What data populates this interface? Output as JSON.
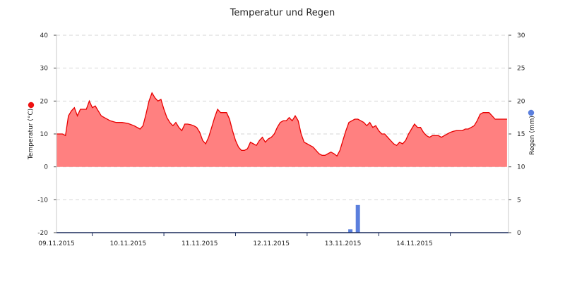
{
  "chart_data": {
    "type": "area",
    "title": "Temperatur und Regen",
    "x_labels": [
      "09.11.2015",
      "10.11.2015",
      "11.11.2015",
      "12.11.2015",
      "13.11.2015",
      "14.11.2015"
    ],
    "x_range": [
      "08.11.2015 12:00",
      "15.11.2015 05:00"
    ],
    "y_left": {
      "label": "Temperatur (°C)",
      "min": -20,
      "max": 40,
      "ticks": [
        40,
        30,
        20,
        10,
        0,
        -10,
        -20
      ]
    },
    "y_right": {
      "label": "Regen (mm)",
      "min": 0,
      "max": 30,
      "ticks": [
        30,
        25,
        20,
        15,
        10,
        5,
        0
      ]
    },
    "grid": true,
    "series": [
      {
        "name": "Temperatur",
        "axis": "left",
        "type": "area",
        "color": "#e80000",
        "fill": "#ff8080",
        "x_unit": "hours since 08.11.2015 12:00",
        "points": [
          [
            0,
            10
          ],
          [
            2,
            10
          ],
          [
            3,
            9.5
          ],
          [
            4,
            15.5
          ],
          [
            5,
            17
          ],
          [
            6,
            18
          ],
          [
            7,
            15.5
          ],
          [
            8,
            17.5
          ],
          [
            9,
            17.5
          ],
          [
            10,
            17.5
          ],
          [
            11,
            20
          ],
          [
            12,
            18
          ],
          [
            13,
            18.5
          ],
          [
            14,
            17
          ],
          [
            15,
            15.5
          ],
          [
            16,
            15
          ],
          [
            18,
            14
          ],
          [
            20,
            13.5
          ],
          [
            22,
            13.5
          ],
          [
            24,
            13.2
          ],
          [
            26,
            12.5
          ],
          [
            28,
            11.5
          ],
          [
            29,
            12.5
          ],
          [
            30,
            16
          ],
          [
            31,
            20
          ],
          [
            32,
            22.5
          ],
          [
            33,
            21
          ],
          [
            34,
            20
          ],
          [
            35,
            20.5
          ],
          [
            36,
            17.5
          ],
          [
            37,
            15
          ],
          [
            38,
            13.5
          ],
          [
            39,
            12.5
          ],
          [
            40,
            13.5
          ],
          [
            41,
            12
          ],
          [
            42,
            11
          ],
          [
            43,
            13
          ],
          [
            44,
            13
          ],
          [
            45,
            12.8
          ],
          [
            46,
            12.5
          ],
          [
            47,
            12
          ],
          [
            48,
            10.5
          ],
          [
            49,
            8
          ],
          [
            50,
            7
          ],
          [
            51,
            9
          ],
          [
            52,
            12
          ],
          [
            53,
            15
          ],
          [
            54,
            17.5
          ],
          [
            55,
            16.5
          ],
          [
            56,
            16.5
          ],
          [
            57,
            16.5
          ],
          [
            58,
            14.5
          ],
          [
            59,
            11
          ],
          [
            60,
            8
          ],
          [
            61,
            6
          ],
          [
            62,
            5
          ],
          [
            63,
            5
          ],
          [
            64,
            5.5
          ],
          [
            65,
            7.5
          ],
          [
            66,
            7
          ],
          [
            67,
            6.5
          ],
          [
            68,
            8
          ],
          [
            69,
            9
          ],
          [
            70,
            7.5
          ],
          [
            71,
            8.5
          ],
          [
            72,
            9
          ],
          [
            73,
            10
          ],
          [
            74,
            12
          ],
          [
            75,
            13.5
          ],
          [
            76,
            14
          ],
          [
            77,
            14
          ],
          [
            78,
            15
          ],
          [
            79,
            14
          ],
          [
            80,
            15.5
          ],
          [
            81,
            14
          ],
          [
            82,
            10
          ],
          [
            83,
            7.5
          ],
          [
            84,
            7
          ],
          [
            85,
            6.5
          ],
          [
            86,
            6
          ],
          [
            87,
            5
          ],
          [
            88,
            4
          ],
          [
            89,
            3.5
          ],
          [
            90,
            3.5
          ],
          [
            91,
            4
          ],
          [
            92,
            4.5
          ],
          [
            93,
            4
          ],
          [
            94,
            3.3
          ],
          [
            95,
            5
          ],
          [
            96,
            8
          ],
          [
            97,
            11
          ],
          [
            98,
            13.5
          ],
          [
            99,
            14
          ],
          [
            100,
            14.5
          ],
          [
            101,
            14.5
          ],
          [
            102,
            14
          ],
          [
            103,
            13.5
          ],
          [
            104,
            12.5
          ],
          [
            105,
            13.5
          ],
          [
            106,
            12
          ],
          [
            107,
            12.5
          ],
          [
            108,
            11
          ],
          [
            109,
            10
          ],
          [
            110,
            10
          ],
          [
            111,
            9
          ],
          [
            112,
            8
          ],
          [
            113,
            7
          ],
          [
            114,
            6.5
          ],
          [
            115,
            7.5
          ],
          [
            116,
            7
          ],
          [
            117,
            8
          ],
          [
            118,
            10
          ],
          [
            119,
            11.5
          ],
          [
            120,
            13
          ],
          [
            121,
            12
          ],
          [
            122,
            12
          ],
          [
            123,
            10.5
          ],
          [
            124,
            9.5
          ],
          [
            125,
            9
          ],
          [
            126,
            9.5
          ],
          [
            127,
            9.5
          ],
          [
            128,
            9.5
          ],
          [
            129,
            9
          ],
          [
            130,
            9.5
          ],
          [
            131,
            10
          ],
          [
            132,
            10.5
          ],
          [
            133,
            10.8
          ],
          [
            134,
            11
          ],
          [
            135,
            11
          ],
          [
            136,
            11
          ],
          [
            137,
            11.5
          ],
          [
            138,
            11.5
          ],
          [
            139,
            12
          ],
          [
            140,
            12.5
          ],
          [
            141,
            14
          ],
          [
            142,
            16
          ],
          [
            143,
            16.5
          ],
          [
            144,
            16.5
          ],
          [
            145,
            16.5
          ],
          [
            146,
            15.5
          ],
          [
            147,
            14.5
          ],
          [
            148,
            14.5
          ],
          [
            149,
            14.5
          ],
          [
            150,
            14.5
          ],
          [
            151,
            14.5
          ]
        ]
      },
      {
        "name": "Regen",
        "axis": "right",
        "type": "bar",
        "color": "#5b7fdd",
        "bars": [
          [
            98.5,
            0.5
          ],
          [
            101,
            4.2
          ]
        ]
      }
    ]
  }
}
